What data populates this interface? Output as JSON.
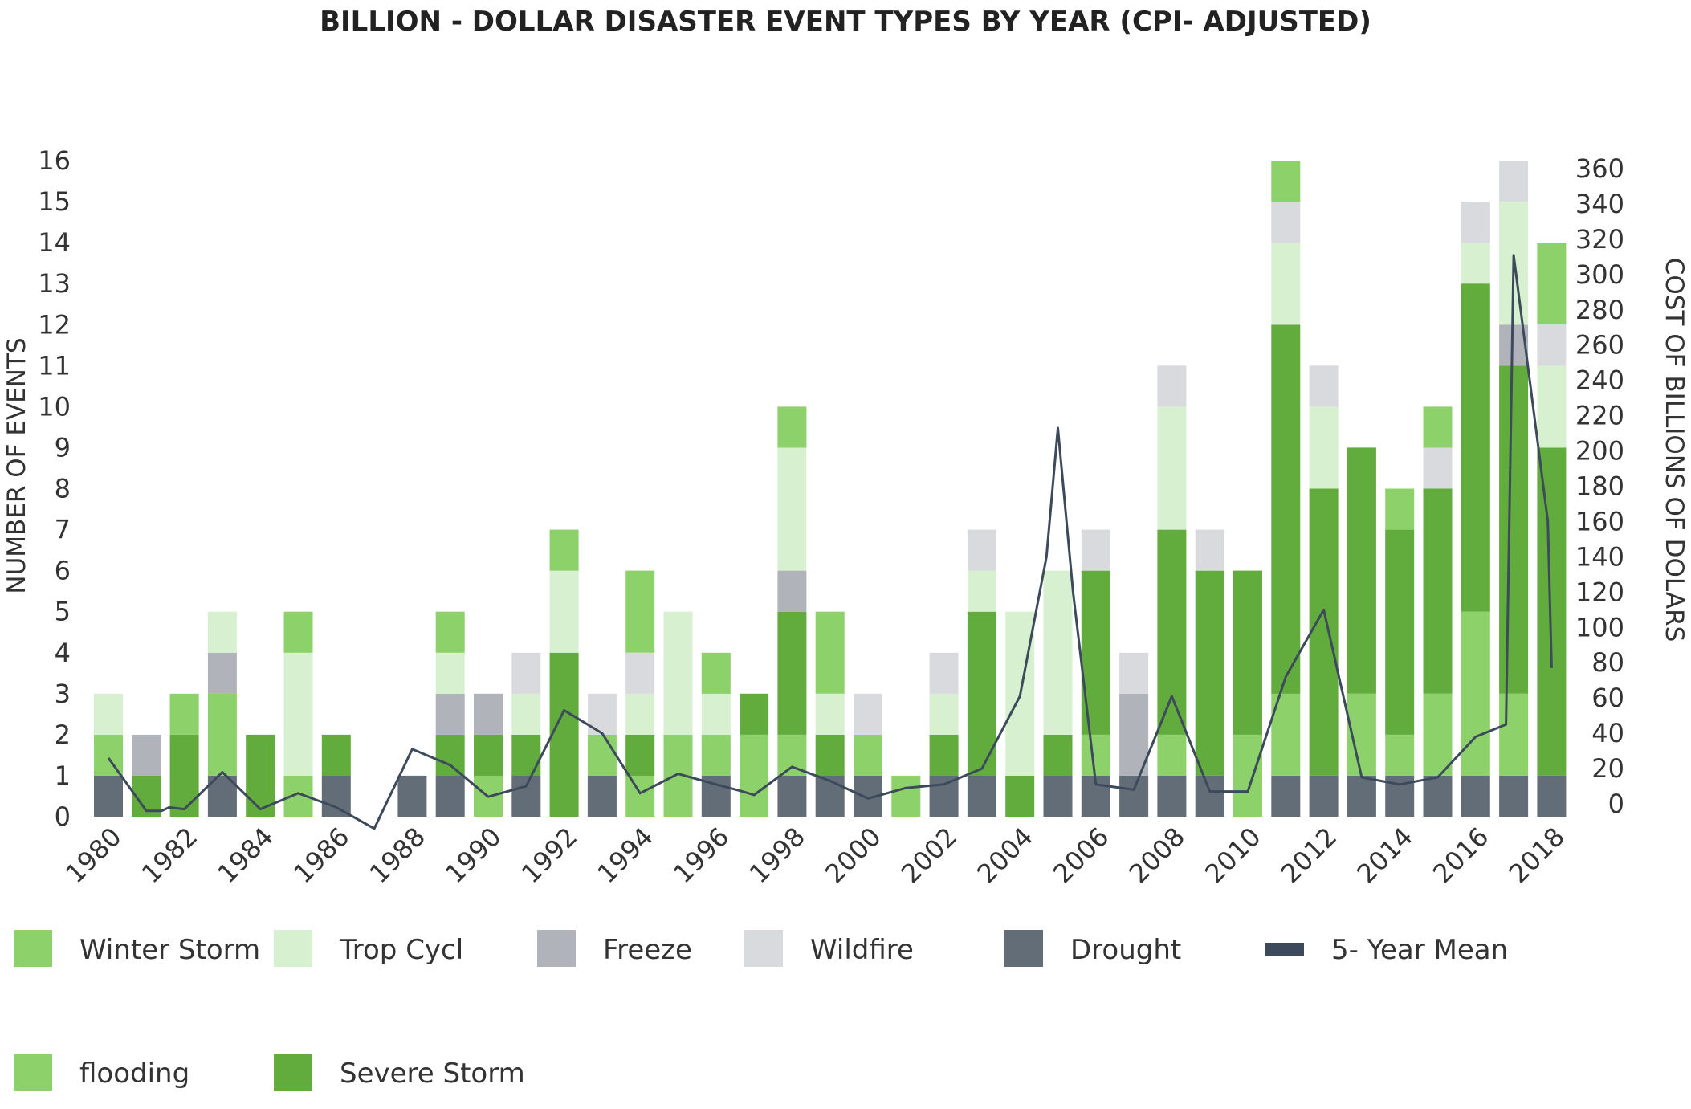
{
  "chart_data": {
    "type": "bar",
    "stacked": true,
    "title": "BILLION - DOLLAR DISASTER EVENT TYPES BY YEAR (CPI- ADJUSTED)",
    "ylabel": "NUMBER OF EVENTS",
    "y2label": "COST OF BILLIONS OF DOLARS",
    "ylim": [
      0,
      16
    ],
    "y2lim": [
      0,
      360
    ],
    "yticks": [
      0,
      1,
      2,
      3,
      4,
      5,
      6,
      7,
      8,
      9,
      10,
      11,
      12,
      13,
      14,
      15,
      16
    ],
    "y2ticks": [
      0,
      20,
      40,
      60,
      80,
      100,
      120,
      140,
      160,
      180,
      200,
      220,
      240,
      260,
      280,
      300,
      320,
      340,
      360
    ],
    "categories": [
      1980,
      1981,
      1982,
      1983,
      1984,
      1985,
      1986,
      1987,
      1988,
      1989,
      1990,
      1991,
      1992,
      1993,
      1994,
      1995,
      1996,
      1997,
      1998,
      1999,
      2000,
      2001,
      2002,
      2003,
      2004,
      2005,
      2006,
      2007,
      2008,
      2009,
      2010,
      2011,
      2012,
      2013,
      2014,
      2015,
      2016,
      2017,
      2018
    ],
    "xtick_labels": [
      "1980",
      "1982",
      "1984",
      "1986",
      "1988",
      "1990",
      "1992",
      "1994",
      "1996",
      "1998",
      "2000",
      "2002",
      "2004",
      "2006",
      "2008",
      "2010",
      "2012",
      "2014",
      "2016",
      "2018"
    ],
    "grid": false,
    "legend_position": "bottom",
    "series": [
      {
        "name": "Drought",
        "color": "#636d78",
        "values": [
          1,
          0,
          0,
          1,
          0,
          0,
          1,
          0,
          1,
          1,
          0,
          1,
          0,
          1,
          0,
          0,
          1,
          0,
          1,
          1,
          1,
          0,
          1,
          1,
          0,
          1,
          1,
          1,
          1,
          1,
          0,
          1,
          1,
          1,
          1,
          1,
          1,
          1,
          1
        ]
      },
      {
        "name": "flooding",
        "color": "#8dd16a",
        "values": [
          1,
          0,
          0,
          2,
          0,
          1,
          0,
          0,
          0,
          0,
          1,
          0,
          0,
          1,
          1,
          2,
          1,
          2,
          1,
          0,
          1,
          1,
          0,
          0,
          0,
          0,
          1,
          0,
          1,
          0,
          2,
          2,
          0,
          2,
          1,
          2,
          4,
          2,
          0
        ]
      },
      {
        "name": "Severe Storm",
        "color": "#62ab3d",
        "values": [
          0,
          1,
          2,
          0,
          2,
          0,
          1,
          0,
          0,
          1,
          1,
          1,
          4,
          0,
          1,
          0,
          0,
          1,
          3,
          1,
          0,
          0,
          1,
          4,
          1,
          1,
          4,
          0,
          5,
          5,
          4,
          9,
          7,
          6,
          5,
          5,
          8,
          8,
          8
        ]
      },
      {
        "name": "Freeze",
        "color": "#b0b4ba",
        "values": [
          0,
          1,
          0,
          1,
          0,
          0,
          0,
          0,
          0,
          1,
          1,
          0,
          0,
          0,
          0,
          0,
          0,
          0,
          1,
          0,
          0,
          0,
          0,
          0,
          0,
          0,
          0,
          2,
          0,
          0,
          0,
          0,
          0,
          0,
          0,
          0,
          0,
          1,
          0
        ]
      },
      {
        "name": "Trop Cycl",
        "color": "#d7f1d0",
        "values": [
          1,
          0,
          0,
          1,
          0,
          3,
          0,
          0,
          0,
          1,
          0,
          1,
          2,
          0,
          1,
          3,
          1,
          0,
          3,
          1,
          0,
          0,
          1,
          1,
          4,
          4,
          0,
          0,
          3,
          0,
          0,
          2,
          2,
          0,
          0,
          0,
          1,
          3,
          2
        ]
      },
      {
        "name": "Wildfire",
        "color": "#d9dadd",
        "values": [
          0,
          0,
          0,
          0,
          0,
          0,
          0,
          0,
          0,
          0,
          0,
          1,
          0,
          1,
          1,
          0,
          0,
          0,
          0,
          0,
          1,
          0,
          1,
          1,
          0,
          0,
          1,
          1,
          1,
          1,
          0,
          1,
          1,
          0,
          0,
          1,
          1,
          1,
          1
        ]
      },
      {
        "name": "Winter Storm",
        "color": "#8dd16a",
        "values": [
          0,
          0,
          1,
          0,
          0,
          1,
          0,
          0,
          0,
          1,
          0,
          0,
          1,
          0,
          2,
          0,
          1,
          0,
          1,
          2,
          0,
          0,
          0,
          0,
          0,
          0,
          0,
          0,
          0,
          0,
          0,
          1,
          0,
          0,
          1,
          1,
          0,
          0,
          2
        ]
      }
    ],
    "line_series": {
      "name": "5- Year Mean",
      "color": "#3d4a5c",
      "axis": "right",
      "x": [
        1980,
        1981,
        1981.4,
        1981.6,
        1982,
        1983,
        1984,
        1985,
        1986,
        1987,
        1988,
        1989,
        1990,
        1991,
        1992,
        1993,
        1994,
        1995,
        1996,
        1996.7,
        1997,
        1998,
        1999,
        2000,
        2001,
        2002,
        2003,
        2004,
        2004.7,
        2005,
        2005.4,
        2006,
        2007,
        2008,
        2009,
        2010,
        2011,
        2012,
        2013,
        2014,
        2015,
        2016,
        2016.8,
        2017,
        2017.9,
        2018
      ],
      "values": [
        26,
        -4,
        -4,
        -2,
        -3,
        18,
        -3,
        6,
        -2,
        -14,
        31,
        22,
        4,
        10,
        53,
        40,
        6,
        17,
        11,
        7,
        5,
        21,
        13,
        3,
        9,
        11,
        20,
        61,
        140,
        213,
        120,
        11,
        8,
        61,
        7,
        7,
        72,
        110,
        15,
        11,
        15,
        38,
        45,
        311,
        160,
        77
      ]
    },
    "legend": [
      {
        "label": "Winter Storm",
        "color": "#8dd16a",
        "kind": "box"
      },
      {
        "label": "Trop Cycl",
        "color": "#d7f1d0",
        "kind": "box"
      },
      {
        "label": "Freeze",
        "color": "#b0b4ba",
        "kind": "box"
      },
      {
        "label": "Wildfire",
        "color": "#d9dadd",
        "kind": "box"
      },
      {
        "label": "Drought",
        "color": "#636d78",
        "kind": "box"
      },
      {
        "label": "5- Year Mean",
        "color": "#3d4a5c",
        "kind": "line"
      },
      {
        "label": "flooding",
        "color": "#8dd16a",
        "kind": "box"
      },
      {
        "label": "Severe Storm",
        "color": "#62ab3d",
        "kind": "box"
      }
    ]
  }
}
